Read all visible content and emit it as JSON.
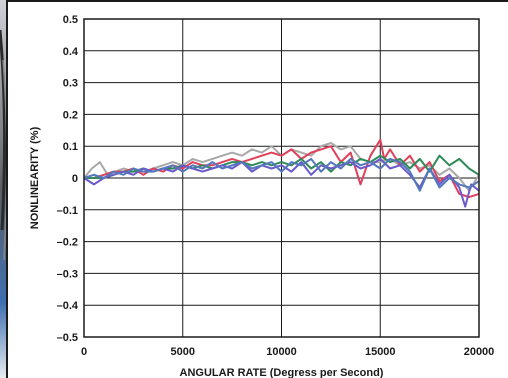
{
  "chart_data": {
    "type": "line",
    "title": "",
    "xlabel": "ANGULAR RATE (Degress per Second)",
    "ylabel": "NONLINEARITY (%)",
    "xlim": [
      0,
      20000
    ],
    "ylim": [
      -0.5,
      0.5
    ],
    "grid": true,
    "x_ticks": [
      0,
      5000,
      10000,
      15000,
      20000
    ],
    "y_ticks": [
      0.5,
      0.4,
      0.3,
      0.2,
      0.1,
      0,
      -0.1,
      -0.2,
      -0.3,
      -0.4,
      -0.5
    ],
    "x_tick_labels": [
      "0",
      "5000",
      "10000",
      "15000",
      "20000"
    ],
    "y_tick_labels": [
      "0.5",
      "0.4",
      "0.3",
      "0.2",
      "0.1",
      "0",
      "–0.1",
      "–0.2",
      "–0.3",
      "–0.4",
      "–0.5"
    ],
    "series": [
      {
        "color": "#a8a8a8",
        "x": [
          0,
          400,
          800,
          1200,
          1600,
          2000,
          2500,
          3000,
          3500,
          4000,
          4500,
          5000,
          5500,
          6000,
          6500,
          7000,
          7500,
          8000,
          8500,
          9000,
          9500,
          10000,
          10500,
          11000,
          11500,
          12000,
          12500,
          13000,
          13500,
          14000,
          14500,
          15000,
          15500,
          16000,
          16500,
          17000,
          17500,
          18000,
          18500,
          19000,
          19500,
          20000
        ],
        "y": [
          0.0,
          0.03,
          0.05,
          0.01,
          0.02,
          0.03,
          0.02,
          0.02,
          0.03,
          0.04,
          0.05,
          0.04,
          0.06,
          0.05,
          0.06,
          0.07,
          0.08,
          0.07,
          0.09,
          0.08,
          0.1,
          0.07,
          0.09,
          0.08,
          0.07,
          0.1,
          0.11,
          0.09,
          0.1,
          0.06,
          0.05,
          0.05,
          0.06,
          0.04,
          0.05,
          0.03,
          0.04,
          0.01,
          0.03,
          0.0,
          -0.04,
          0.01
        ]
      },
      {
        "color": "#e0405a",
        "x": [
          0,
          500,
          1000,
          1500,
          2000,
          2500,
          3000,
          3500,
          4000,
          4500,
          5000,
          5500,
          6000,
          6500,
          7000,
          7500,
          8000,
          8500,
          9000,
          9500,
          10000,
          10500,
          11000,
          11500,
          12000,
          12500,
          13000,
          13500,
          14000,
          14500,
          14800,
          15000,
          15200,
          15500,
          16000,
          16500,
          17000,
          17500,
          18000,
          18500,
          19000,
          19500,
          20000
        ],
        "y": [
          0.0,
          0.0,
          0.01,
          0.02,
          0.02,
          0.03,
          0.01,
          0.03,
          0.02,
          0.04,
          0.03,
          0.05,
          0.04,
          0.04,
          0.05,
          0.06,
          0.05,
          0.06,
          0.07,
          0.08,
          0.07,
          0.09,
          0.06,
          0.08,
          0.09,
          0.1,
          0.05,
          0.08,
          -0.02,
          0.07,
          0.1,
          0.12,
          0.06,
          0.09,
          0.04,
          0.07,
          0.02,
          0.05,
          -0.01,
          0.01,
          -0.05,
          -0.06,
          -0.05
        ]
      },
      {
        "color": "#2e8b57",
        "x": [
          0,
          500,
          1000,
          1500,
          2000,
          2500,
          3000,
          3500,
          4000,
          4500,
          5000,
          5500,
          6000,
          6500,
          7000,
          7500,
          8000,
          8500,
          9000,
          9500,
          10000,
          10500,
          11000,
          11500,
          12000,
          12500,
          13000,
          13500,
          14000,
          14500,
          15000,
          15500,
          16000,
          16500,
          17000,
          17500,
          18000,
          18500,
          19000,
          19500,
          20000
        ],
        "y": [
          0.0,
          0.0,
          0.0,
          0.01,
          0.02,
          0.02,
          0.03,
          0.02,
          0.03,
          0.03,
          0.04,
          0.03,
          0.04,
          0.03,
          0.04,
          0.05,
          0.05,
          0.04,
          0.05,
          0.04,
          0.05,
          0.04,
          0.06,
          0.03,
          0.05,
          0.02,
          0.05,
          0.04,
          0.06,
          0.05,
          0.07,
          0.05,
          0.06,
          0.03,
          0.06,
          0.02,
          0.07,
          0.04,
          0.06,
          0.03,
          0.01
        ]
      },
      {
        "color": "#6a5acd",
        "x": [
          0,
          500,
          1000,
          1500,
          2000,
          2500,
          3000,
          3500,
          4000,
          4500,
          5000,
          5500,
          6000,
          6500,
          7000,
          7500,
          8000,
          8500,
          9000,
          9500,
          10000,
          10500,
          11000,
          11500,
          12000,
          12500,
          13000,
          13500,
          14000,
          14500,
          15000,
          15500,
          16000,
          16500,
          17000,
          17500,
          18000,
          18500,
          19000,
          19300,
          19600,
          20000
        ],
        "y": [
          0.0,
          -0.02,
          0.0,
          0.01,
          0.02,
          0.01,
          0.03,
          0.02,
          0.03,
          0.02,
          0.04,
          0.03,
          0.02,
          0.03,
          0.04,
          0.03,
          0.05,
          0.02,
          0.04,
          0.03,
          0.04,
          0.02,
          0.05,
          0.01,
          0.04,
          0.03,
          0.04,
          0.05,
          0.03,
          0.04,
          0.06,
          0.03,
          0.04,
          0.01,
          -0.03,
          0.03,
          -0.02,
          0.01,
          -0.03,
          -0.09,
          -0.02,
          -0.04
        ]
      },
      {
        "color": "#5577bb",
        "x": [
          0,
          500,
          1000,
          1500,
          2000,
          2500,
          3000,
          3500,
          4000,
          4500,
          5000,
          5500,
          6000,
          6500,
          7000,
          7500,
          8000,
          8500,
          9000,
          9500,
          10000,
          10500,
          11000,
          11500,
          12000,
          12500,
          13000,
          13500,
          14000,
          14500,
          15000,
          15500,
          16000,
          16500,
          17000,
          17500,
          18000,
          18500,
          19000,
          19500,
          20000
        ],
        "y": [
          0.0,
          0.01,
          0.0,
          0.02,
          0.01,
          0.03,
          0.02,
          0.02,
          0.03,
          0.04,
          0.02,
          0.04,
          0.03,
          0.05,
          0.03,
          0.04,
          0.05,
          0.03,
          0.04,
          0.05,
          0.02,
          0.05,
          0.04,
          0.06,
          0.02,
          0.05,
          0.03,
          0.06,
          0.04,
          0.05,
          0.03,
          0.06,
          0.05,
          0.02,
          -0.04,
          0.03,
          -0.03,
          0.0,
          -0.02,
          -0.03,
          -0.01
        ]
      }
    ]
  }
}
